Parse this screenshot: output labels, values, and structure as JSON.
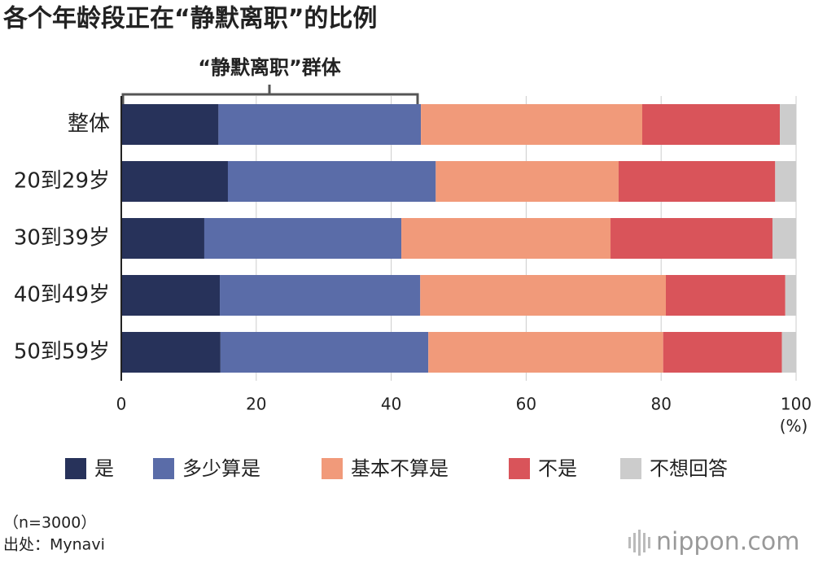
{
  "chart_data": {
    "type": "stacked-barh",
    "title": "各个年龄段正在“静默离职”的比例",
    "annotation": "“静默离职”群体",
    "x_unit": "(%)",
    "categories": [
      "整体",
      "20到29岁",
      "30到39岁",
      "40到49岁",
      "50到59岁"
    ],
    "series": [
      {
        "name": "是",
        "color": "#27325a",
        "values": [
          14.4,
          15.8,
          12.3,
          14.6,
          14.7
        ]
      },
      {
        "name": "多少算是",
        "color": "#5a6ca8",
        "values": [
          30.0,
          30.8,
          29.2,
          29.7,
          30.8
        ]
      },
      {
        "name": "基本不算是",
        "color": "#f19a7a",
        "values": [
          32.8,
          27.1,
          31.0,
          36.4,
          34.8
        ]
      },
      {
        "name": "不是",
        "color": "#d9545a",
        "values": [
          20.4,
          23.2,
          24.0,
          17.7,
          17.6
        ]
      },
      {
        "name": "不想回答",
        "color": "#cccccc",
        "values": [
          2.4,
          3.1,
          3.5,
          1.6,
          2.1
        ]
      }
    ],
    "xlim": [
      0,
      100
    ],
    "xticks": [
      0,
      20,
      40,
      60,
      80,
      100
    ],
    "grid": true,
    "notes": [
      "（n=3000）",
      "出处：Mynavi"
    ],
    "brand": "nippon.com"
  }
}
